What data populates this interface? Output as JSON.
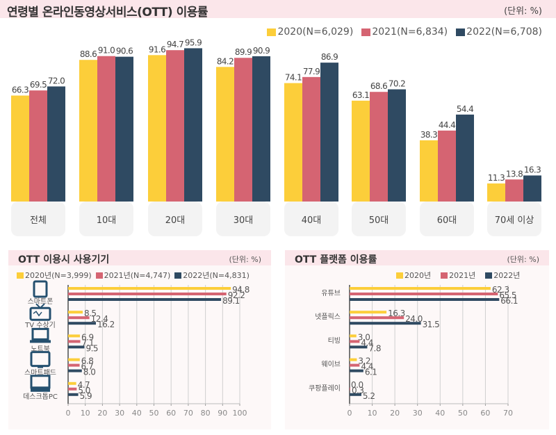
{
  "header": {
    "title": "연령별 온라인동영상서비스(OTT) 이용률",
    "unit": "(단위: %)"
  },
  "colors": {
    "y2020": "#fcce3a",
    "y2021": "#d56472",
    "y2022": "#2f4a62",
    "header_bg": "#fbe6ea",
    "category_tab_bg": "#f3f3f3"
  },
  "chart_data": [
    {
      "type": "bar",
      "title": "연령별 온라인동영상서비스(OTT) 이용률",
      "unit": "(단위: %)",
      "legend_position": "top-right",
      "categories": [
        "전체",
        "10대",
        "20대",
        "30대",
        "40대",
        "50대",
        "60대",
        "70세 이상"
      ],
      "series": [
        {
          "name": "2020(N=6,029)",
          "color": "#fcce3a",
          "values": [
            66.3,
            88.6,
            91.6,
            84.2,
            74.1,
            63.1,
            38.3,
            11.3
          ],
          "labels": [
            "66.3",
            "88.6",
            "91.6",
            "84.2",
            "74.1",
            "63.1",
            "38.3",
            "11.3"
          ]
        },
        {
          "name": "2021(N=6,834)",
          "color": "#d56472",
          "values": [
            69.5,
            91.0,
            94.7,
            89.9,
            77.9,
            68.6,
            44.4,
            13.8
          ],
          "labels": [
            "69.5",
            "91.0",
            "94.7",
            "89.9",
            "77.9",
            "68.6",
            "44.4",
            "13.8"
          ]
        },
        {
          "name": "2022(N=6,708)",
          "color": "#2f4a62",
          "values": [
            72.0,
            90.6,
            95.9,
            90.9,
            86.9,
            70.2,
            54.4,
            16.3
          ],
          "labels": [
            "72.0",
            "90.6",
            "95.9",
            "90.9",
            "86.9",
            "70.2",
            "54.4",
            "16.3"
          ]
        }
      ],
      "ylim": [
        0,
        100
      ],
      "grid": false
    },
    {
      "type": "bar",
      "orientation": "horizontal",
      "title": "OTT 이용시 사용기기",
      "unit": "(단위: %)",
      "legend_position": "top",
      "categories": [
        "스마트폰",
        "TV 수상기",
        "노트북",
        "스마트패드",
        "데스크톱PC"
      ],
      "icons": [
        "smartphone-icon",
        "tv-icon",
        "laptop-icon",
        "tablet-icon",
        "desktop-icon"
      ],
      "series": [
        {
          "name": "2020년(N=3,999)",
          "color": "#fcce3a",
          "values": [
            94.8,
            8.5,
            6.9,
            6.8,
            4.7
          ],
          "labels": [
            "94.8",
            "8.5",
            "6.9",
            "6.8",
            "4.7"
          ]
        },
        {
          "name": "2021년(N=4,747)",
          "color": "#d56472",
          "values": [
            92.2,
            12.4,
            7.1,
            6.7,
            5.0
          ],
          "labels": [
            "92.2",
            "12.4",
            "7.1",
            "6.7",
            "5.0"
          ]
        },
        {
          "name": "2022년(N=4,831)",
          "color": "#2f4a62",
          "values": [
            89.1,
            16.2,
            9.5,
            8.0,
            5.9
          ],
          "labels": [
            "89.1",
            "16.2",
            "9.5",
            "8.0",
            "5.9"
          ]
        }
      ],
      "xlim": [
        0,
        100
      ],
      "xticks": [
        "0",
        "10",
        "20",
        "30",
        "40",
        "50",
        "60",
        "70",
        "80",
        "90",
        "100"
      ],
      "grid": true
    },
    {
      "type": "bar",
      "orientation": "horizontal",
      "title": "OTT 플랫폼 이용률",
      "unit": "(단위: %)",
      "legend_position": "top-right",
      "categories": [
        "유튜브",
        "넷플릭스",
        "티빙",
        "웨이브",
        "쿠팡플레이"
      ],
      "series": [
        {
          "name": "2020년",
          "color": "#fcce3a",
          "values": [
            62.3,
            16.3,
            3.0,
            3.2,
            0.0
          ],
          "labels": [
            "62.3",
            "16.3",
            "3.0",
            "3.2",
            "0.0"
          ]
        },
        {
          "name": "2021년",
          "color": "#d56472",
          "values": [
            65.5,
            24.0,
            4.4,
            4.4,
            0.3
          ],
          "labels": [
            "65.5",
            "24.0",
            "4.4",
            "4.4",
            "0.3"
          ]
        },
        {
          "name": "2022년",
          "color": "#2f4a62",
          "values": [
            66.1,
            31.5,
            7.8,
            6.1,
            5.2
          ],
          "labels": [
            "66.1",
            "31.5",
            "7.8",
            "6.1",
            "5.2"
          ]
        }
      ],
      "xlim": [
        0,
        70
      ],
      "xticks": [
        "0",
        "10",
        "20",
        "30",
        "40",
        "50",
        "60",
        "70"
      ],
      "grid": true
    }
  ]
}
